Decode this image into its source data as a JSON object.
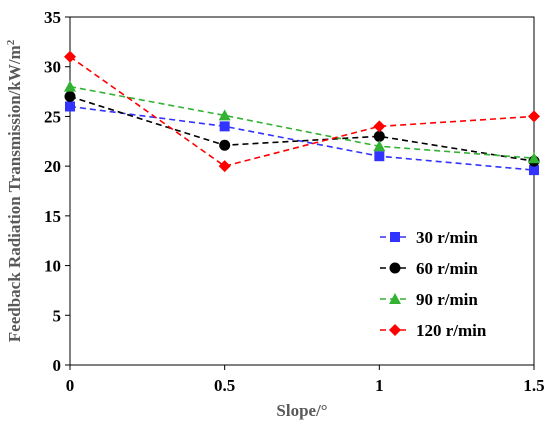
{
  "chart_data": {
    "type": "line",
    "title": "",
    "xlabel": "Slope/°",
    "ylabel_main": "Feedback Radiation Transmission/kW/m",
    "ylabel_sup": "2",
    "x": [
      0,
      0.5,
      1,
      1.5
    ],
    "x_tick_labels": [
      "0",
      "0.5",
      "1",
      "1.5"
    ],
    "xlim": [
      0,
      1.5
    ],
    "ylim": [
      0,
      35
    ],
    "y_ticks": [
      0,
      5,
      10,
      15,
      20,
      25,
      30,
      35
    ],
    "y_tick_labels": [
      "0",
      "5",
      "10",
      "15",
      "20",
      "25",
      "30",
      "35"
    ],
    "grid": false,
    "legend_position": "bottom-right",
    "series": [
      {
        "name": "30 r/min",
        "values": [
          26.0,
          24.0,
          21.0,
          19.6
        ],
        "color": "#3333ff",
        "marker": "square"
      },
      {
        "name": "60 r/min",
        "values": [
          27.0,
          22.1,
          23.0,
          20.5
        ],
        "color": "#000000",
        "marker": "circle"
      },
      {
        "name": "90 r/min",
        "values": [
          28.0,
          25.1,
          22.0,
          20.8
        ],
        "color": "#33b233",
        "marker": "triangle"
      },
      {
        "name": "120 r/min",
        "values": [
          31.0,
          20.0,
          24.0,
          25.0
        ],
        "color": "#ff0000",
        "marker": "diamond"
      }
    ]
  }
}
